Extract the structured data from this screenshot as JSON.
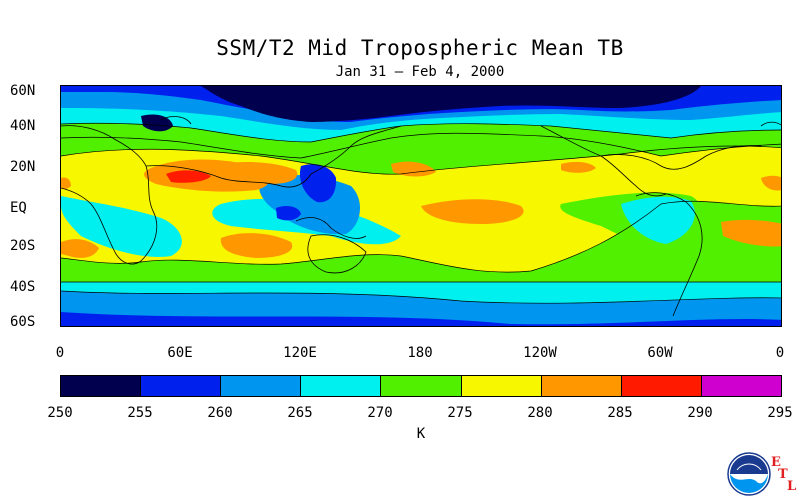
{
  "title": "SSM/T2 Mid Tropospheric Mean TB",
  "subtitle": "Jan 31 – Feb 4, 2000",
  "latitude_labels": [
    "60N",
    "40N",
    "20N",
    "EQ",
    "20S",
    "40S",
    "60S"
  ],
  "longitude_labels": [
    "0",
    "60E",
    "120E",
    "180",
    "120W",
    "60W",
    "0"
  ],
  "colorbar": {
    "ticks": [
      "250",
      "255",
      "260",
      "265",
      "270",
      "275",
      "280",
      "285",
      "290",
      "295"
    ],
    "colors": [
      "#00004f",
      "#0020ee",
      "#0096f0",
      "#00f0f0",
      "#50f000",
      "#f7f700",
      "#ff9800",
      "#ff1a00",
      "#cf00cf"
    ],
    "units": "K"
  },
  "logo": {
    "name": "noaa-logo",
    "text": "NOAA",
    "lab_letters": [
      "E",
      "T",
      "L"
    ]
  }
}
